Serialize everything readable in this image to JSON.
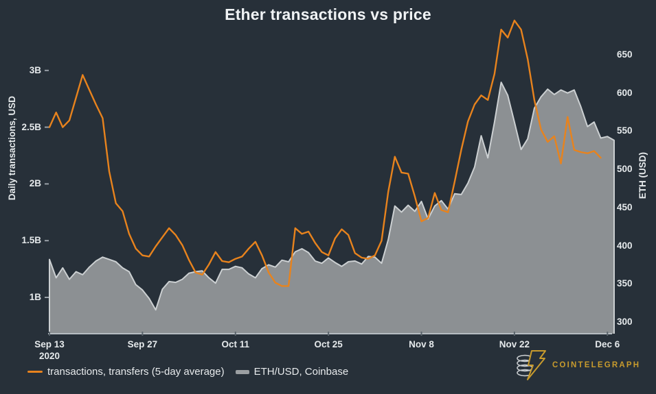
{
  "title": "Ether transactions vs price",
  "axes": {
    "left": {
      "label": "Daily transactions, USD",
      "ticks": [
        {
          "label": "3B",
          "value": 3
        },
        {
          "label": "2.5B",
          "value": 2.5
        },
        {
          "label": "2B",
          "value": 2
        },
        {
          "label": "1.5B",
          "value": 1.5
        },
        {
          "label": "1B",
          "value": 1
        }
      ]
    },
    "right": {
      "label": "ETH (USD)",
      "ticks": [
        {
          "label": "650",
          "value": 650
        },
        {
          "label": "600",
          "value": 600
        },
        {
          "label": "550",
          "value": 550
        },
        {
          "label": "500",
          "value": 500
        },
        {
          "label": "450",
          "value": 450
        },
        {
          "label": "400",
          "value": 400
        },
        {
          "label": "350",
          "value": 350
        },
        {
          "label": "300",
          "value": 300
        }
      ]
    },
    "x": {
      "ticks": [
        {
          "label": "Sep 13",
          "sublabel": "2020",
          "day": 0
        },
        {
          "label": "Sep 27",
          "day": 14
        },
        {
          "label": "Oct 11",
          "day": 28
        },
        {
          "label": "Oct 25",
          "day": 42
        },
        {
          "label": "Nov 8",
          "day": 56
        },
        {
          "label": "Nov 22",
          "day": 70
        },
        {
          "label": "Dec 6",
          "day": 84
        }
      ]
    }
  },
  "legend": {
    "items": [
      {
        "label": "transactions, transfers (5-day average)",
        "swatch": "line",
        "color": "#e8831d"
      },
      {
        "label": "ETH/USD, Coinbase",
        "swatch": "thick-line",
        "color": "#9b9fa2"
      }
    ]
  },
  "branding": {
    "text": "COINTELEGRAPH",
    "color": "#c89b2d"
  },
  "colors": {
    "background": "#273039",
    "transactions_line": "#e8831d",
    "eth_fill": "#8c9093",
    "eth_edge": "#ccd0d2",
    "axis_line": "#b6bdc2",
    "tick_text": "#e6eaec",
    "title_text": "#f0f3f5"
  },
  "chart_data": {
    "type": "area+line",
    "title": "Ether transactions vs price",
    "x_unit": "days since Sep 13 2020, one value per day",
    "x_tick_labels": [
      "Sep 13 2020",
      "Sep 27",
      "Oct 11",
      "Oct 25",
      "Nov 8",
      "Nov 22",
      "Dec 6"
    ],
    "left_axis": {
      "label": "Daily transactions, USD",
      "range_shown": [
        1,
        3
      ],
      "unit": "billions USD"
    },
    "right_axis": {
      "label": "ETH (USD)",
      "range_shown": [
        300,
        650
      ],
      "unit": "USD"
    },
    "grid": false,
    "legend_position": "bottom-left",
    "series": [
      {
        "name": "transactions, transfers (5-day average)",
        "axis": "left",
        "type": "line",
        "color": "#e8831d",
        "unit": "B USD",
        "start_day": 0,
        "values": [
          2.5,
          2.63,
          2.5,
          2.56,
          2.76,
          2.96,
          2.83,
          2.7,
          2.58,
          2.11,
          1.83,
          1.76,
          1.56,
          1.43,
          1.37,
          1.36,
          1.45,
          1.53,
          1.61,
          1.55,
          1.46,
          1.33,
          1.22,
          1.2,
          1.29,
          1.4,
          1.32,
          1.31,
          1.34,
          1.36,
          1.43,
          1.49,
          1.37,
          1.22,
          1.13,
          1.1,
          1.1,
          1.61,
          1.56,
          1.58,
          1.48,
          1.4,
          1.37,
          1.52,
          1.6,
          1.55,
          1.39,
          1.35,
          1.34,
          1.37,
          1.5,
          1.93,
          2.24,
          2.1,
          2.09,
          1.89,
          1.67,
          1.7,
          1.92,
          1.77,
          1.75,
          2.02,
          2.3,
          2.55,
          2.7,
          2.78,
          2.74,
          2.97,
          3.36,
          3.29,
          3.44,
          3.36,
          3.1,
          2.74,
          2.48,
          2.37,
          2.42,
          2.18,
          2.59,
          2.3,
          2.28,
          2.27,
          2.29,
          2.23
        ]
      },
      {
        "name": "ETH/USD, Coinbase",
        "axis": "right",
        "type": "area",
        "color": "#8c9093",
        "edge_color": "#ccd0d2",
        "unit": "USD",
        "start_day": 0,
        "values": [
          382,
          358,
          371,
          356,
          366,
          362,
          372,
          380,
          385,
          382,
          379,
          371,
          366,
          349,
          342,
          331,
          316,
          343,
          353,
          352,
          356,
          364,
          366,
          367,
          358,
          351,
          369,
          369,
          373,
          371,
          363,
          358,
          370,
          375,
          372,
          381,
          379,
          392,
          396,
          391,
          380,
          377,
          384,
          378,
          373,
          379,
          380,
          376,
          386,
          385,
          377,
          408,
          452,
          444,
          453,
          445,
          458,
          435,
          452,
          459,
          448,
          468,
          467,
          482,
          503,
          544,
          515,
          562,
          614,
          597,
          562,
          526,
          540,
          580,
          595,
          605,
          598,
          604,
          600,
          604,
          582,
          556,
          562,
          541,
          543,
          538
        ]
      }
    ]
  }
}
